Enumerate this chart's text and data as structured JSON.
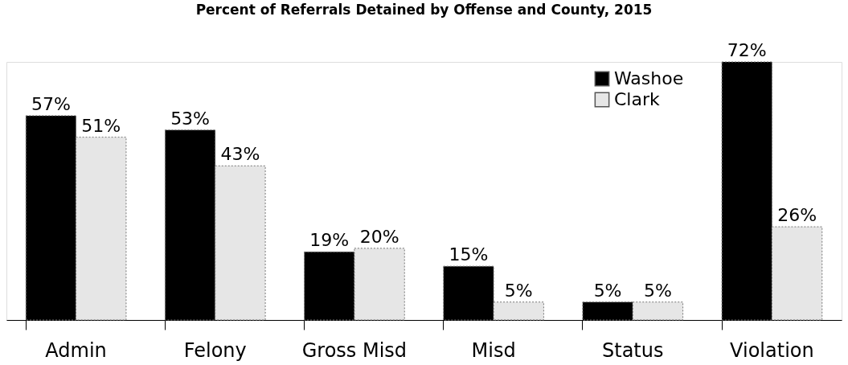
{
  "chart_data": {
    "type": "bar",
    "title": "Percent of Referrals Detained by Offense and County, 2015",
    "categories": [
      "Admin",
      "Felony",
      "Gross Misd",
      "Misd",
      "Status",
      "Violation"
    ],
    "series": [
      {
        "name": "Washoe",
        "color": "#000000",
        "values": [
          57,
          53,
          19,
          15,
          5,
          72
        ],
        "value_labels": [
          "57%",
          "53%",
          "19%",
          "15%",
          "5%",
          "72%"
        ]
      },
      {
        "name": "Clark",
        "color": "#e6e6e6",
        "values": [
          51,
          43,
          20,
          5,
          5,
          26
        ],
        "value_labels": [
          "51%",
          "43%",
          "20%",
          "5%",
          "5%",
          "26%"
        ]
      }
    ],
    "legend": "top right",
    "grid": false
  }
}
